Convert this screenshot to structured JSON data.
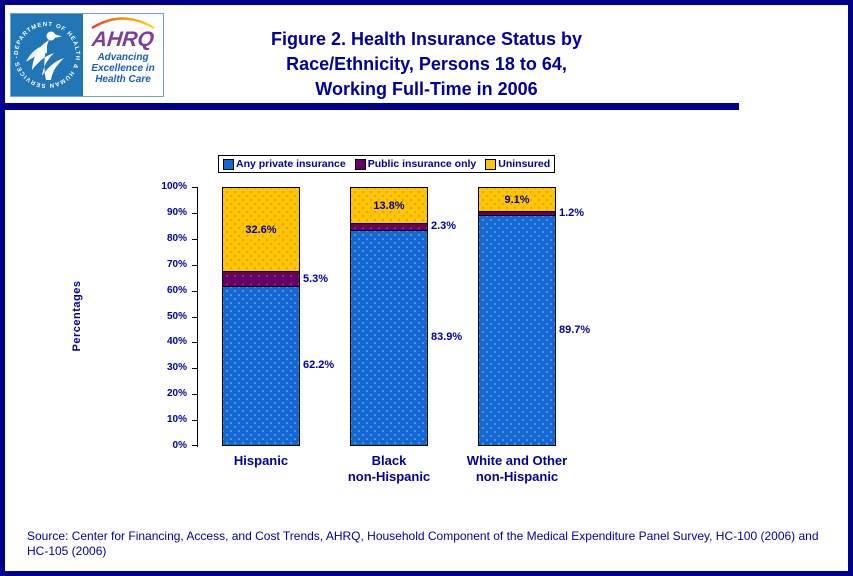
{
  "page": {
    "frame_color": "#00008b",
    "background": "#ffffff",
    "text_color": "#000099"
  },
  "header": {
    "logo": {
      "hhs_seal_text": "DEPARTMENT OF HEALTH & HUMAN SERVICES - USA",
      "hhs_blue": "#2176b5",
      "ahrq_wordmark": "AHRQ",
      "ahrq_purple": "#7d3f98",
      "tagline_blue": "#1b5eb5",
      "tagline_lines": [
        "Advancing",
        "Excellence in",
        "Health Care"
      ]
    },
    "title_lines": [
      "Figure 2. Health Insurance Status by",
      "Race/Ethnicity, Persons 18 to 64,",
      "Working Full-Time in 2006"
    ]
  },
  "chart_data": {
    "type": "bar",
    "stacked": true,
    "percent_stacked": true,
    "title": "",
    "xlabel": "",
    "ylabel": "Percentages",
    "ylim": [
      0,
      100
    ],
    "yticks": [
      "0%",
      "10%",
      "20%",
      "30%",
      "40%",
      "50%",
      "60%",
      "70%",
      "80%",
      "90%",
      "100%"
    ],
    "grid": false,
    "legend_position": "top",
    "categories": [
      [
        "Hispanic"
      ],
      [
        "Black",
        "non-Hispanic"
      ],
      [
        "White and Other",
        "non-Hispanic"
      ]
    ],
    "series": [
      {
        "name": "Any private insurance",
        "color": "#1467d2",
        "pattern": "seg-private",
        "label_placement": "outside",
        "values": [
          62.2,
          83.9,
          89.7
        ]
      },
      {
        "name": "Public insurance only",
        "color": "#660066",
        "pattern": "seg-public",
        "label_placement": "outside",
        "values": [
          5.3,
          2.3,
          1.2
        ]
      },
      {
        "name": "Uninsured",
        "color": "#ffc504",
        "pattern": "seg-uninsured",
        "label_placement": "inside",
        "values": [
          32.6,
          13.8,
          9.1
        ]
      }
    ]
  },
  "source_lines": [
    "Source: Center for Financing, Access, and Cost Trends, AHRQ, Household Component of the Medical Expenditure Panel Survey, HC-100 (2006) and",
    "HC-105 (2006)"
  ]
}
